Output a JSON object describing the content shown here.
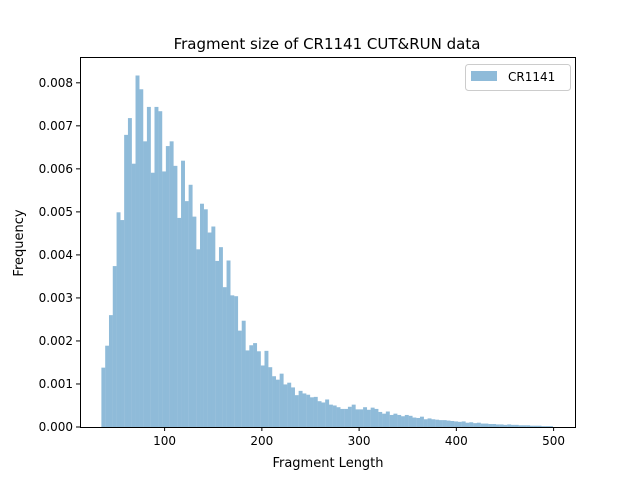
{
  "chart_data": {
    "type": "bar",
    "title": "Fragment size of CR1141 CUT&RUN data",
    "xlabel": "Fragment Length",
    "ylabel": "Frequency",
    "xlim": [
      13,
      522
    ],
    "ylim": [
      0,
      0.0086
    ],
    "xticks": [
      100,
      200,
      300,
      400,
      500
    ],
    "xtick_labels": [
      "100",
      "200",
      "300",
      "400",
      "500"
    ],
    "yticks": [
      0,
      0.001,
      0.002,
      0.003,
      0.004,
      0.005,
      0.006,
      0.007,
      0.008
    ],
    "ytick_labels": [
      "0.000",
      "0.001",
      "0.002",
      "0.003",
      "0.004",
      "0.005",
      "0.006",
      "0.007",
      "0.008"
    ],
    "grid": false,
    "legend_position": "top-right",
    "bin_start": 35,
    "bin_width": 3.9,
    "series": [
      {
        "name": "CR1141",
        "color": "#8fbbd9",
        "values": [
          0.00138,
          0.00189,
          0.0026,
          0.00374,
          0.00499,
          0.00481,
          0.00679,
          0.00718,
          0.00612,
          0.00817,
          0.00785,
          0.00664,
          0.00744,
          0.00591,
          0.00744,
          0.00734,
          0.00594,
          0.00653,
          0.00664,
          0.00607,
          0.00486,
          0.00619,
          0.00525,
          0.00563,
          0.00489,
          0.00413,
          0.00519,
          0.00506,
          0.00452,
          0.00466,
          0.00386,
          0.00418,
          0.00325,
          0.00387,
          0.00306,
          0.00304,
          0.00224,
          0.00247,
          0.00178,
          0.0019,
          0.00195,
          0.00176,
          0.00143,
          0.00177,
          0.00139,
          0.00118,
          0.0011,
          0.00124,
          0.00099,
          0.00103,
          0.00092,
          0.00074,
          0.00084,
          0.00078,
          0.00075,
          0.00069,
          0.0007,
          0.0006,
          0.00057,
          0.00064,
          0.00052,
          0.0005,
          0.00046,
          0.00042,
          0.00042,
          0.00047,
          0.00052,
          0.00041,
          0.00041,
          0.00046,
          0.0004,
          0.00045,
          0.00042,
          0.00035,
          0.00031,
          0.00036,
          0.00028,
          0.00031,
          0.00028,
          0.00025,
          0.00028,
          0.00026,
          0.00022,
          0.00021,
          0.00024,
          0.00018,
          0.0002,
          0.00018,
          0.00017,
          0.00016,
          0.00016,
          0.00015,
          0.00014,
          0.00013,
          0.00012,
          0.00013,
          0.0001,
          0.00011,
          9e-05,
          0.0001,
          8e-05,
          8e-05,
          7e-05,
          7e-05,
          6e-05,
          6e-05,
          5e-05,
          6e-05,
          5e-05,
          5e-05,
          4e-05,
          4e-05,
          4e-05,
          3e-05,
          3e-05,
          3e-05,
          2e-05,
          2e-05,
          2e-05
        ]
      }
    ]
  }
}
